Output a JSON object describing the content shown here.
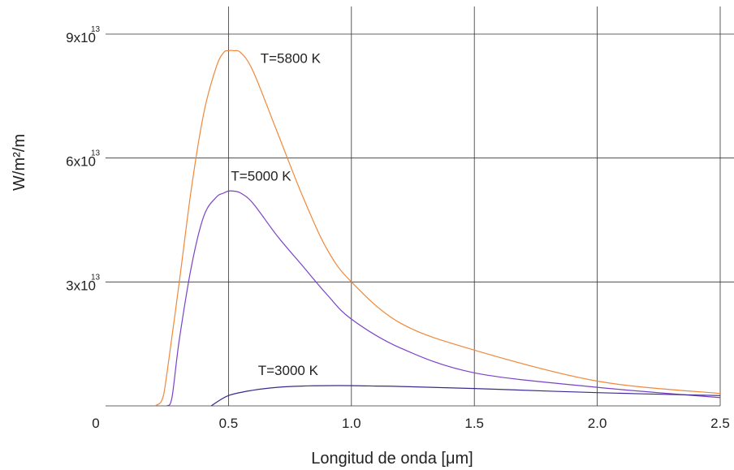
{
  "chart_data": {
    "type": "line",
    "title": "",
    "xlabel": "Longitud de onda [μm]",
    "ylabel": "W/m²/m",
    "xlim": [
      0,
      2.5
    ],
    "ylim": [
      0,
      90000000000000.0
    ],
    "grid": true,
    "x_ticks": [
      {
        "value": 0,
        "label": "0"
      },
      {
        "value": 0.5,
        "label": "0.5"
      },
      {
        "value": 1.0,
        "label": "1.0"
      },
      {
        "value": 1.5,
        "label": "1.5"
      },
      {
        "value": 2.0,
        "label": "2.0"
      },
      {
        "value": 2.5,
        "label": "2.5"
      }
    ],
    "y_ticks": [
      {
        "value": 30000000000000.0,
        "mantissa": "3x10",
        "exponent": "13"
      },
      {
        "value": 60000000000000.0,
        "mantissa": "6x10",
        "exponent": "13"
      },
      {
        "value": 90000000000000.0,
        "mantissa": "9x10",
        "exponent": "13"
      }
    ],
    "series": [
      {
        "temperature": 5800,
        "color": "#f0883a",
        "x": [
          0.2,
          0.23,
          0.25,
          0.3,
          0.35,
          0.4,
          0.45,
          0.48,
          0.5,
          0.52,
          0.55,
          0.6,
          0.7,
          0.8,
          0.9,
          1.0,
          1.2,
          1.5,
          2.0,
          2.5
        ],
        "y": [
          0,
          1500000000000.0,
          8000000000000.0,
          30000000000000.0,
          53000000000000.0,
          71000000000000.0,
          82000000000000.0,
          85500000000000.0,
          86000000000000.0,
          86000000000000.0,
          85500000000000.0,
          81000000000000.0,
          66000000000000.0,
          51000000000000.0,
          38000000000000.0,
          30000000000000.0,
          20000000000000.0,
          13500000000000.0,
          6000000000000.0,
          3000000000000.0
        ]
      },
      {
        "temperature": 5000,
        "color": "#7a42c6",
        "x": [
          0.25,
          0.27,
          0.3,
          0.35,
          0.4,
          0.45,
          0.48,
          0.5,
          0.52,
          0.55,
          0.6,
          0.7,
          0.8,
          0.9,
          1.0,
          1.2,
          1.5,
          2.0,
          2.5
        ],
        "y": [
          0,
          2000000000000.0,
          16000000000000.0,
          34000000000000.0,
          46000000000000.0,
          50500000000000.0,
          51500000000000.0,
          52000000000000.0,
          52000000000000.0,
          51500000000000.0,
          49000000000000.0,
          41000000000000.0,
          34000000000000.0,
          27000000000000.0,
          21000000000000.0,
          14000000000000.0,
          8000000000000.0,
          4500000000000.0,
          2000000000000.0
        ]
      },
      {
        "temperature": 3000,
        "color": "#3a2a8e",
        "x": [
          0.43,
          0.5,
          0.6,
          0.7,
          0.8,
          0.9,
          1.0,
          1.1,
          1.2,
          1.5,
          2.0,
          2.5
        ],
        "y": [
          0,
          2500000000000.0,
          3800000000000.0,
          4500000000000.0,
          4800000000000.0,
          4900000000000.0,
          4900000000000.0,
          4800000000000.0,
          4700000000000.0,
          4200000000000.0,
          3200000000000.0,
          2500000000000.0
        ]
      }
    ],
    "annotations": [
      {
        "text": "T=5800 K",
        "x": 0.63,
        "y": 83000000000000.0
      },
      {
        "text": "T=5000 K",
        "x": 0.51,
        "y": 54500000000000.0
      },
      {
        "text": "T=3000 K",
        "x": 0.62,
        "y": 7500000000000.0
      }
    ]
  }
}
